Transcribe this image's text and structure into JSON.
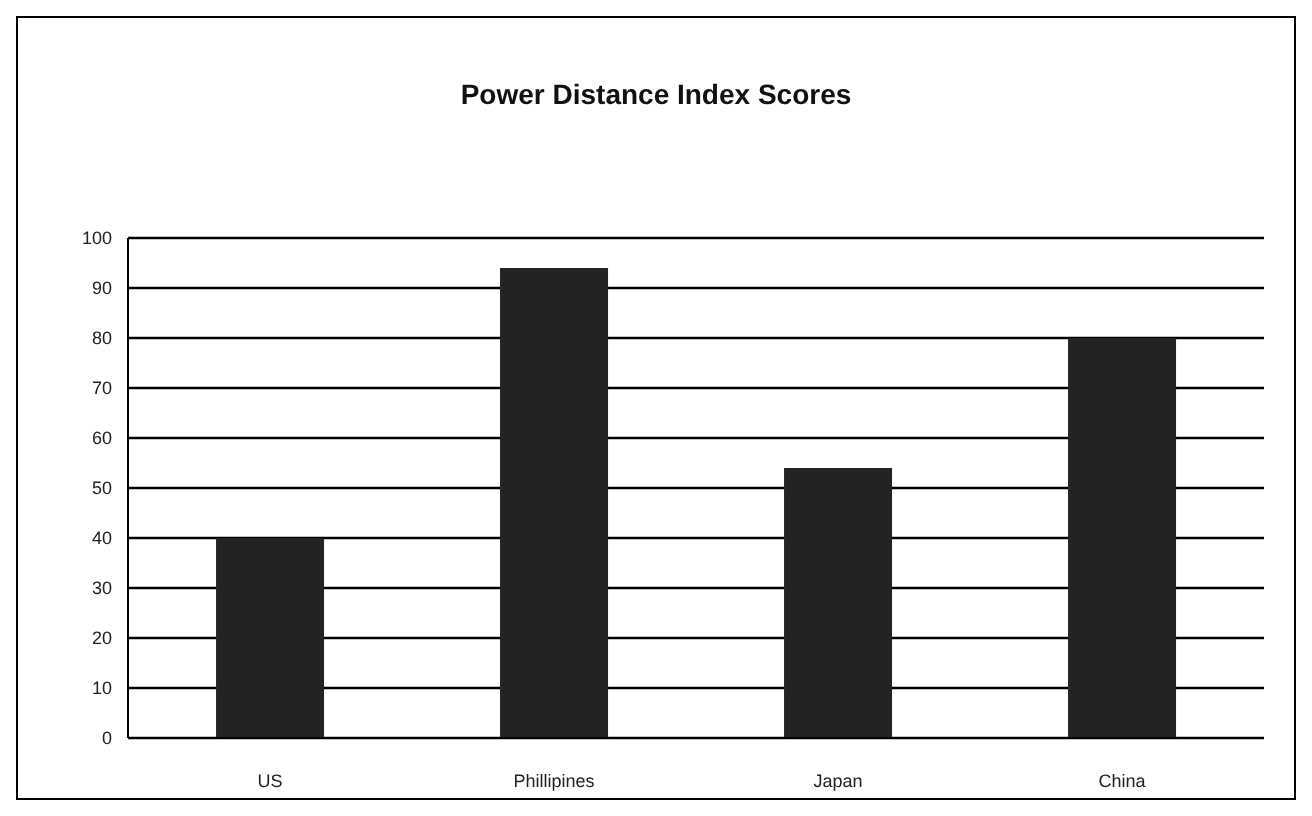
{
  "chart_data": {
    "type": "bar",
    "title": "Power Distance Index Scores",
    "categories": [
      "US",
      "Phillipines",
      "Japan",
      "China"
    ],
    "values": [
      40,
      94,
      54,
      80
    ],
    "color": "#232323",
    "ylim": [
      0,
      100
    ],
    "yticks": [
      0,
      10,
      20,
      30,
      40,
      50,
      60,
      70,
      80,
      90,
      100
    ],
    "grid": "y"
  }
}
